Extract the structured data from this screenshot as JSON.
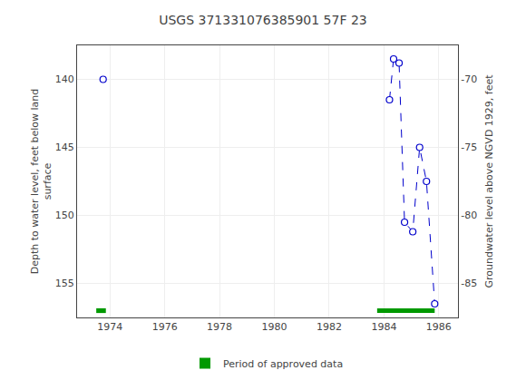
{
  "chart_data": {
    "type": "line",
    "title": "USGS 371331076385901 57F 23",
    "ylabel": "Depth to water level, feet below land\nsurface",
    "y2label": "Groundwater level above NGVD 1929, feet",
    "xlim": [
      1972.8,
      1986.7
    ],
    "xticks": [
      1974,
      1976,
      1978,
      1980,
      1982,
      1984,
      1986
    ],
    "ylim": [
      157.5,
      137.5
    ],
    "yticks": [
      140,
      145,
      150,
      155
    ],
    "y2lim": [
      -87.5,
      -67.5
    ],
    "y2ticks": [
      -70,
      -75,
      -80,
      -85
    ],
    "grid": true,
    "legend": "bottom",
    "series": [
      {
        "x": [
          1973.75
        ],
        "values": [
          140.0
        ],
        "color": "#0000cc",
        "line_style": "dashed",
        "marker": "circle"
      },
      {
        "x": [
          1984.2,
          1984.35,
          1984.55,
          1984.75,
          1985.05,
          1985.3,
          1985.55,
          1985.85
        ],
        "values": [
          141.5,
          138.5,
          138.8,
          150.5,
          151.2,
          145.0,
          147.5,
          156.5
        ],
        "color": "#0000cc",
        "line_style": "dashed",
        "marker": "circle"
      },
      {
        "name": "Period of approved data",
        "type": "bar",
        "orientation": "horizontal",
        "color": "#009900",
        "y": 157.0,
        "height": 0.35,
        "starts": [
          1973.5,
          1983.75
        ],
        "ends": [
          1973.85,
          1985.85
        ]
      }
    ]
  }
}
